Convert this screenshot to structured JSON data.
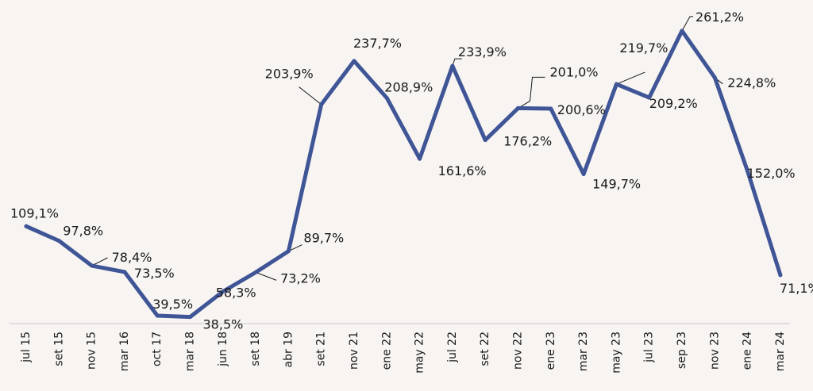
{
  "colors": {
    "background": "#f7f4f2",
    "line": "#3f5596",
    "axis": "#c8c8c8",
    "text": "#1a1a1a"
  },
  "chart_data": {
    "type": "line",
    "title": "",
    "xlabel": "",
    "ylabel": "",
    "grid": false,
    "legend": "none",
    "ylim": [
      0,
      280
    ],
    "categories": [
      "jul 15",
      "set 15",
      "nov 15",
      "mar 16",
      "oct 17",
      "mar 18",
      "jun 18",
      "set 18",
      "abr 19",
      "set 21",
      "nov 21",
      "ene 22",
      "may 22",
      "jul 22",
      "set 22",
      "nov 22",
      "ene 23",
      "mar 23",
      "may 23",
      "jul 23",
      "sep 23",
      "nov 23",
      "ene 24",
      "mar 24"
    ],
    "series": [
      {
        "values": [
          109.1,
          97.8,
          78.4,
          73.5,
          39.5,
          38.5,
          58.3,
          73.2,
          89.7,
          203.9,
          237.7,
          208.9,
          161.6,
          233.9,
          176.2,
          201.0,
          200.6,
          149.7,
          219.7,
          209.2,
          261.2,
          224.8,
          152.0,
          71.1
        ]
      }
    ],
    "data_labels": [
      "109,1%",
      "97,8%",
      "78,4%",
      "73,5%",
      "39,5%",
      "38,5%",
      "58,3%",
      "73,2%",
      "89,7%",
      "203,9%",
      "237,7%",
      "208,9%",
      "161,6%",
      "233,9%",
      "176,2%",
      "201,0%",
      "200,6%",
      "149,7%",
      "219,7%",
      "209,2%",
      "261,2%",
      "224,8%",
      "152,0%",
      "71,1%"
    ]
  }
}
